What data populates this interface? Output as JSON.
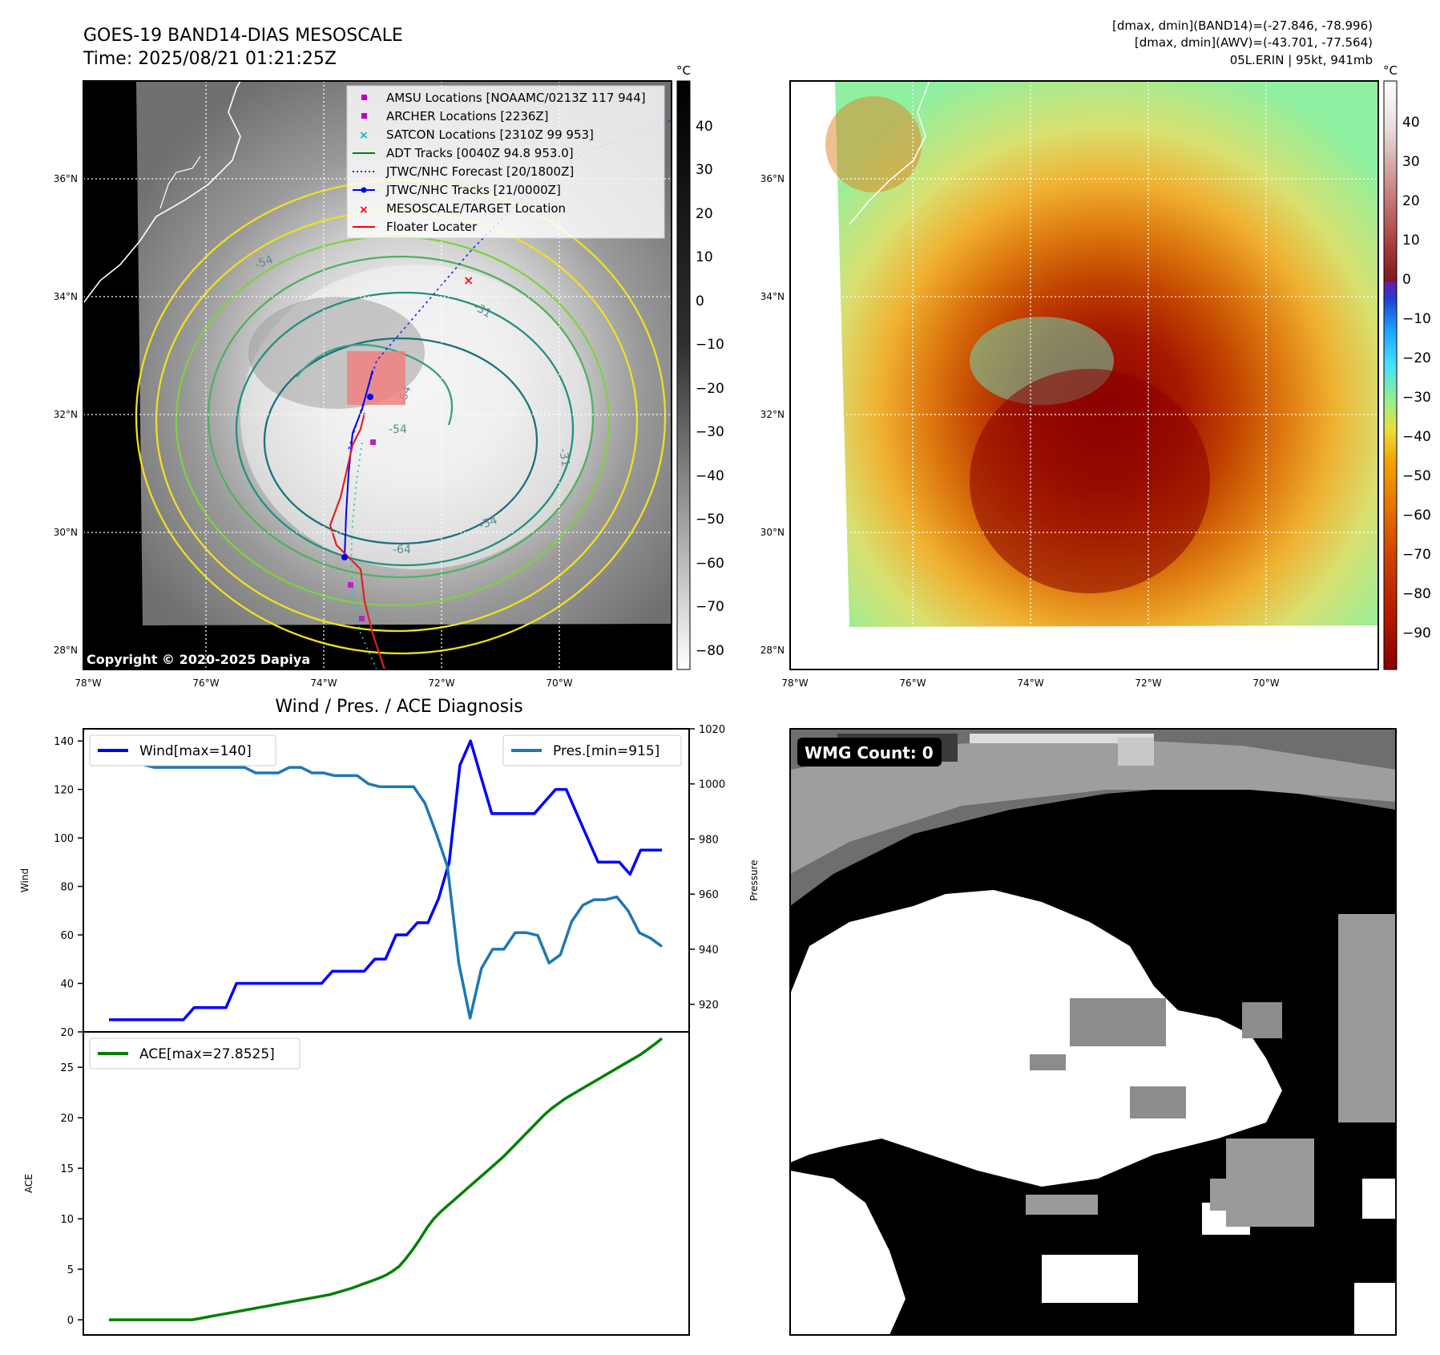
{
  "header": {
    "title": "GOES-19 BAND14-DIAS MESOSCALE",
    "time": "Time: 2025/08/21 01:21:25Z",
    "info1": "[dmax, dmin](BAND14)=(-27.846, -78.996)",
    "info2": "[dmax, dmin](AWV)=(-43.701, -77.564)",
    "info3": "05L.ERIN | 95kt, 941mb",
    "copyright": "Copyright © 2020-2025 Dapiya",
    "unit": "°C"
  },
  "maps": {
    "lat_labels": [
      "36°N",
      "34°N",
      "32°N",
      "30°N",
      "28°N"
    ],
    "lon_labels": [
      "78°W",
      "76°W",
      "74°W",
      "72°W",
      "70°W"
    ]
  },
  "legend": {
    "items": [
      "AMSU Locations [NOAAMC/0213Z 117 944]",
      "ARCHER Locations [2236Z]",
      "SATCON Locations [2310Z 99 953]",
      "ADT Tracks [0040Z 94.8 953.0]",
      "JTWC/NHC Forecast [20/1800Z]",
      "JTWC/NHC Tracks [21/0000Z]",
      "MESOSCALE/TARGET Location",
      "Floater Locater"
    ],
    "contour_labels": [
      "-54",
      "-31",
      "-54",
      "-64",
      "-64",
      "-54",
      "-31",
      "-31",
      "-54",
      "-64"
    ]
  },
  "colorbar1": {
    "ticks": [
      "40",
      "30",
      "20",
      "10",
      "0",
      "−10",
      "−20",
      "−30",
      "−40",
      "−50",
      "−60",
      "−70",
      "−80"
    ]
  },
  "colorbar2": {
    "ticks": [
      "40",
      "30",
      "20",
      "10",
      "0",
      "−10",
      "−20",
      "−30",
      "−40",
      "−50",
      "−60",
      "−70",
      "−80",
      "−90"
    ]
  },
  "diagnosis": {
    "title": "Wind / Pres. / ACE Diagnosis",
    "wind_legend": "Wind[max=140]",
    "pres_legend": "Pres.[min=915]",
    "ace_legend": "ACE[max=27.8525]",
    "wind_ylabel": "Wind",
    "pres_ylabel": "Pressure",
    "ace_ylabel": "ACE"
  },
  "wmg": {
    "label": "WMG Count: 0"
  },
  "chart_data": [
    {
      "type": "line",
      "ylabel": "Wind",
      "ylim": [
        20,
        145
      ],
      "yticks": [
        20,
        40,
        60,
        80,
        100,
        120,
        140
      ],
      "series": [
        {
          "name": "Wind[max=140]",
          "color": "#0000ff",
          "values": [
            25,
            25,
            25,
            25,
            25,
            25,
            25,
            25,
            30,
            30,
            30,
            30,
            40,
            40,
            40,
            40,
            40,
            40,
            40,
            40,
            40,
            45,
            45,
            45,
            45,
            50,
            50,
            60,
            60,
            65,
            65,
            75,
            90,
            130,
            140,
            125,
            110,
            110,
            110,
            110,
            110,
            115,
            120,
            120,
            110,
            100,
            90,
            90,
            90,
            85,
            95,
            95,
            95
          ]
        }
      ]
    },
    {
      "type": "line",
      "ylabel": "Pressure",
      "ylim": [
        910,
        1020
      ],
      "yticks": [
        920,
        940,
        960,
        980,
        1000,
        1020
      ],
      "series": [
        {
          "name": "Pres.[min=915]",
          "color": "#1f77b4",
          "values": [
            1013,
            1013,
            1008,
            1007,
            1006,
            1006,
            1006,
            1006,
            1006,
            1006,
            1006,
            1006,
            1006,
            1004,
            1004,
            1004,
            1006,
            1006,
            1004,
            1004,
            1003,
            1003,
            1003,
            1000,
            999,
            999,
            999,
            999,
            993,
            982,
            970,
            935,
            915,
            933,
            940,
            940,
            946,
            946,
            945,
            935,
            938,
            950,
            956,
            958,
            958,
            959,
            954,
            946,
            944,
            941
          ]
        }
      ]
    },
    {
      "type": "line",
      "ylabel": "ACE",
      "ylim": [
        -1.5,
        28.5
      ],
      "yticks": [
        0,
        5,
        10,
        15,
        20,
        25
      ],
      "series": [
        {
          "name": "ACE[max=27.8525]",
          "color": "#008000",
          "values": [
            0,
            0,
            0,
            0,
            0,
            0,
            0,
            0,
            0,
            0,
            0,
            0,
            0,
            0.12,
            0.25,
            0.37,
            0.5,
            0.62,
            0.75,
            0.87,
            1.0,
            1.12,
            1.25,
            1.37,
            1.5,
            1.62,
            1.75,
            1.87,
            2.0,
            2.12,
            2.25,
            2.37,
            2.5,
            2.7,
            2.9,
            3.1,
            3.35,
            3.6,
            3.85,
            4.1,
            4.4,
            4.8,
            5.3,
            6.1,
            7.0,
            8.0,
            9.1,
            10.0,
            10.7,
            11.3,
            11.9,
            12.5,
            13.1,
            13.7,
            14.3,
            14.9,
            15.5,
            16.1,
            16.8,
            17.5,
            18.2,
            18.9,
            19.6,
            20.3,
            20.9,
            21.4,
            21.9,
            22.3,
            22.7,
            23.1,
            23.5,
            23.9,
            24.3,
            24.7,
            25.1,
            25.5,
            25.9,
            26.3,
            26.8,
            27.3,
            27.85
          ]
        }
      ]
    }
  ]
}
